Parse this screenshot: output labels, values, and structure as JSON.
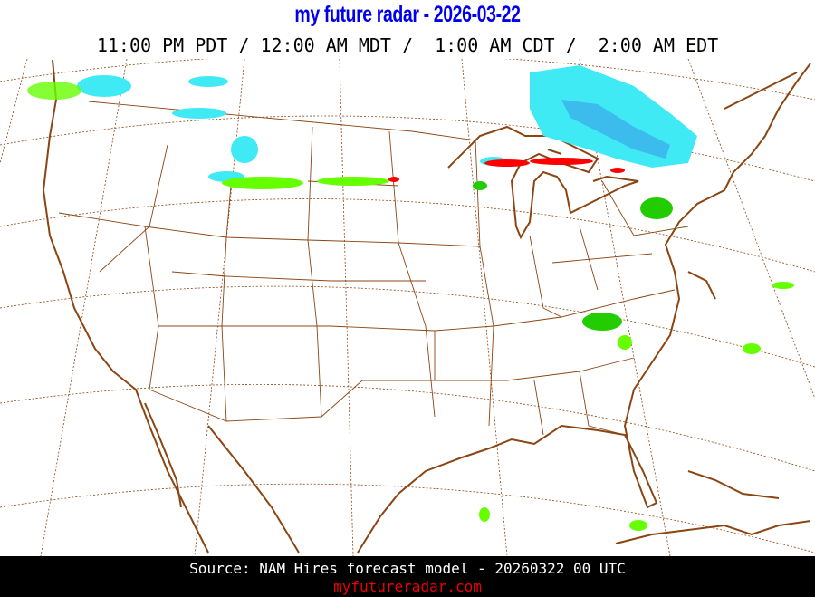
{
  "header": {
    "title": "my future radar - 2026-03-22",
    "times": "11:00 PM PDT / 12:00 AM MDT /  1:00 AM CDT /  2:00 AM EDT"
  },
  "map": {
    "region": "Continental United States",
    "colors": {
      "coast": "#8b4513",
      "grid": "#8b4513",
      "snow_light": "#40eaf5",
      "snow_heavy": "#3aa8e8",
      "rain_light": "#66ff00",
      "rain_moderate": "#22cc00",
      "mix": "#ff0000"
    }
  },
  "footer": {
    "source": "Source: NAM Hires forecast model - 20260322 00 UTC",
    "site": "myfutureradar.com"
  }
}
